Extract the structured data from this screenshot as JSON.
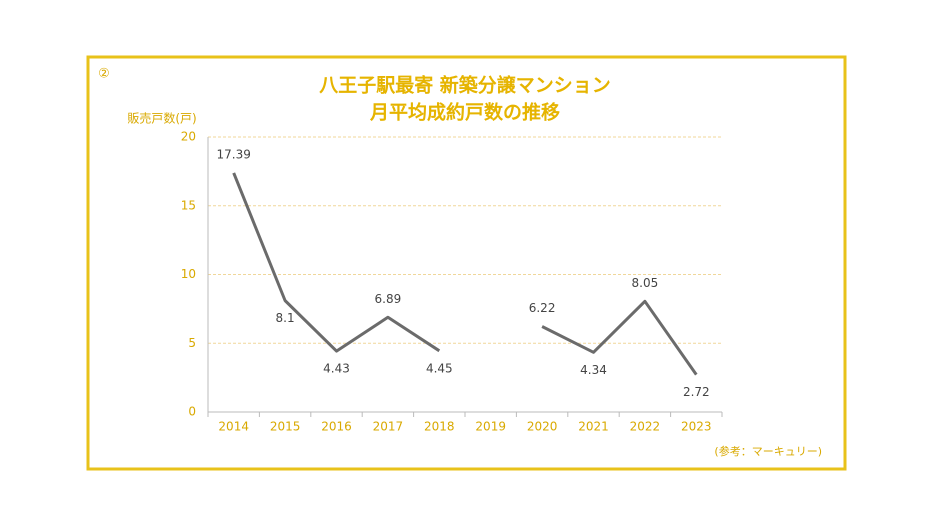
{
  "chart_data": {
    "type": "line",
    "marker": "②",
    "title": [
      "八王子駅最寄 新築分譲マンション",
      "月平均成約戸数の推移"
    ],
    "ylabel": "販売戸数(戸)",
    "source": "(参考：マーキュリー)",
    "categories": [
      "2014",
      "2015",
      "2016",
      "2017",
      "2018",
      "2019",
      "2020",
      "2021",
      "2022",
      "2023"
    ],
    "values": [
      17.39,
      8.1,
      4.43,
      6.89,
      4.45,
      null,
      6.22,
      4.34,
      8.05,
      2.72
    ],
    "color": "#6b6b6b",
    "ylim": [
      0,
      20
    ],
    "yticks": [
      0,
      5,
      10,
      15,
      20
    ],
    "grid": true
  }
}
